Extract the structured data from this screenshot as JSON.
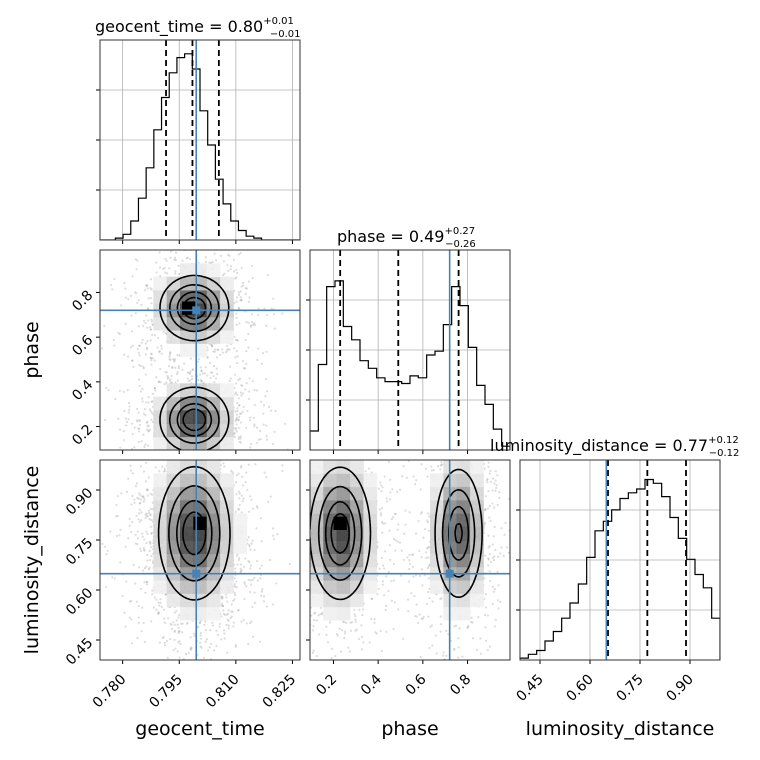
{
  "chart_data": {
    "type": "corner",
    "parameters": [
      {
        "name": "geocent_time",
        "title_value": "0.80",
        "title_plus": "+0.01",
        "title_minus": "−0.01",
        "range": [
          0.774,
          0.827
        ],
        "ticks": [
          0.78,
          0.795,
          0.81,
          0.825
        ],
        "tick_labels": [
          "0.780",
          "0.795",
          "0.810",
          "0.825"
        ],
        "quantiles": [
          0.7915,
          0.7985,
          0.8055
        ],
        "truth": 0.7995,
        "hist": [
          0,
          0,
          0.01,
          0.03,
          0.1,
          0.22,
          0.38,
          0.58,
          0.75,
          0.88,
          0.96,
          0.98,
          0.9,
          0.68,
          0.5,
          0.32,
          0.19,
          0.1,
          0.05,
          0.02,
          0.01,
          0,
          0,
          0,
          0,
          0
        ]
      },
      {
        "name": "phase",
        "title_value": "0.49",
        "title_plus": "+0.27",
        "title_minus": "−0.26",
        "range": [
          0.095,
          0.99
        ],
        "ticks": [
          0.2,
          0.4,
          0.6,
          0.8
        ],
        "tick_labels": [
          "0.2",
          "0.4",
          "0.6",
          "0.8"
        ],
        "quantiles": [
          0.23,
          0.49,
          0.76
        ],
        "truth": 0.72,
        "hist": [
          0.1,
          0.45,
          0.86,
          0.89,
          0.65,
          0.58,
          0.47,
          0.43,
          0.38,
          0.36,
          0.36,
          0.35,
          0.39,
          0.38,
          0.5,
          0.52,
          0.66,
          0.86,
          0.76,
          0.54,
          0.34,
          0.24,
          0.11,
          0.02
        ]
      },
      {
        "name": "luminosity_distance",
        "title_value": "0.77",
        "title_plus": "+0.12",
        "title_minus": "−0.12",
        "range": [
          0.39,
          0.99
        ],
        "ticks": [
          0.45,
          0.6,
          0.75,
          0.9
        ],
        "tick_labels": [
          "0.45",
          "0.60",
          "0.75",
          "0.90"
        ],
        "quantiles": [
          0.654,
          0.772,
          0.888
        ],
        "truth": 0.649,
        "hist": [
          0.01,
          0.03,
          0.05,
          0.1,
          0.15,
          0.22,
          0.3,
          0.4,
          0.54,
          0.68,
          0.73,
          0.79,
          0.85,
          0.88,
          0.9,
          0.95,
          0.93,
          0.86,
          0.75,
          0.64,
          0.53,
          0.45,
          0.38,
          0.22
        ]
      }
    ],
    "pairs": [
      {
        "x": "geocent_time",
        "y": "phase",
        "modes": [
          {
            "x": 0.799,
            "y": 0.73,
            "sx": 0.005,
            "sy": 0.08,
            "w": 1.0
          },
          {
            "x": 0.799,
            "y": 0.23,
            "sx": 0.005,
            "sy": 0.08,
            "w": 1.0
          }
        ],
        "peak": {
          "x": 0.7975,
          "y": 0.73
        }
      },
      {
        "x": "phase",
        "y": "luminosity_distance",
        "modes": [
          {
            "x": 0.23,
            "y": 0.77,
            "sx": 0.075,
            "sy": 0.11,
            "w": 1.0
          },
          {
            "x": 0.76,
            "y": 0.77,
            "sx": 0.06,
            "sy": 0.11,
            "w": 0.9
          }
        ],
        "peak": {
          "x": 0.23,
          "y": 0.8
        }
      },
      {
        "x": "geocent_time",
        "y": "luminosity_distance",
        "modes": [
          {
            "x": 0.799,
            "y": 0.77,
            "sx": 0.0052,
            "sy": 0.11,
            "w": 1.0
          }
        ],
        "peak": {
          "x": 0.8005,
          "y": 0.8
        }
      }
    ]
  }
}
